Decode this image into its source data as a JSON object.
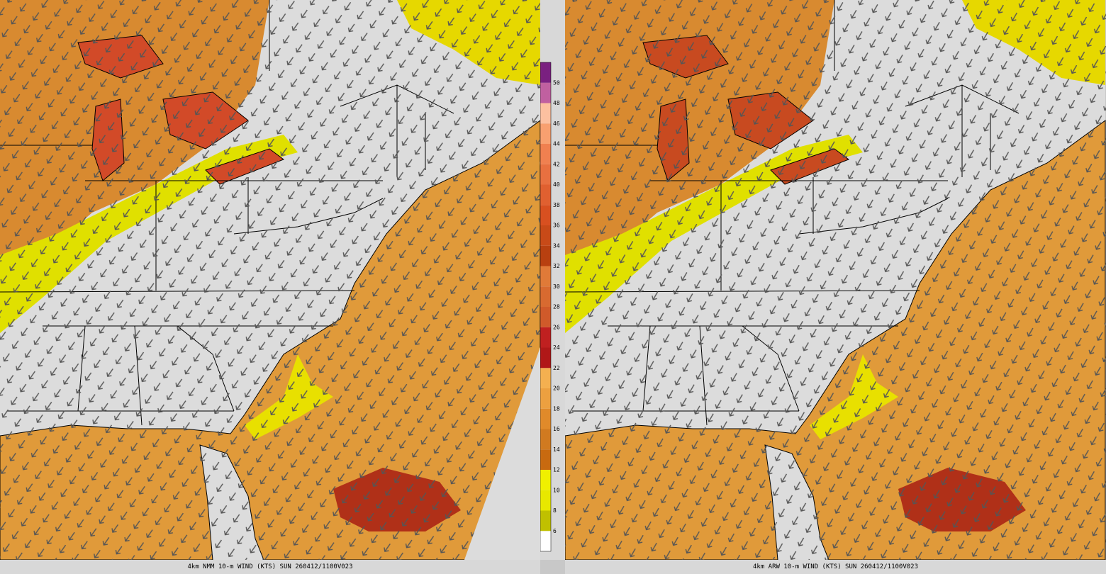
{
  "panels": [
    {
      "caption": "4km NMM 10-m WIND (KTS) SUN 260412/1100V023"
    },
    {
      "caption": "4km ARW 10-m WIND (KTS) SUN 260412/1100V023"
    }
  ],
  "colorbar": {
    "labels": [
      6,
      8,
      10,
      12,
      14,
      16,
      18,
      20,
      22,
      24,
      26,
      28,
      30,
      32,
      34,
      36,
      38,
      40,
      42,
      44,
      46,
      48,
      50
    ],
    "colors": [
      "#c0c000",
      "#e8e800",
      "#f0f000",
      "#c86a10",
      "#d07a20",
      "#e08a2a",
      "#eca040",
      "#f4b050",
      "#b01818",
      "#c02020",
      "#d05a2a",
      "#d86a30",
      "#e07a38",
      "#b84010",
      "#c84a18",
      "#d85020",
      "#e06030",
      "#e87040",
      "#f08050",
      "#f8a070",
      "#fcc0a0",
      "#c060a0",
      "#7a2080"
    ]
  }
}
